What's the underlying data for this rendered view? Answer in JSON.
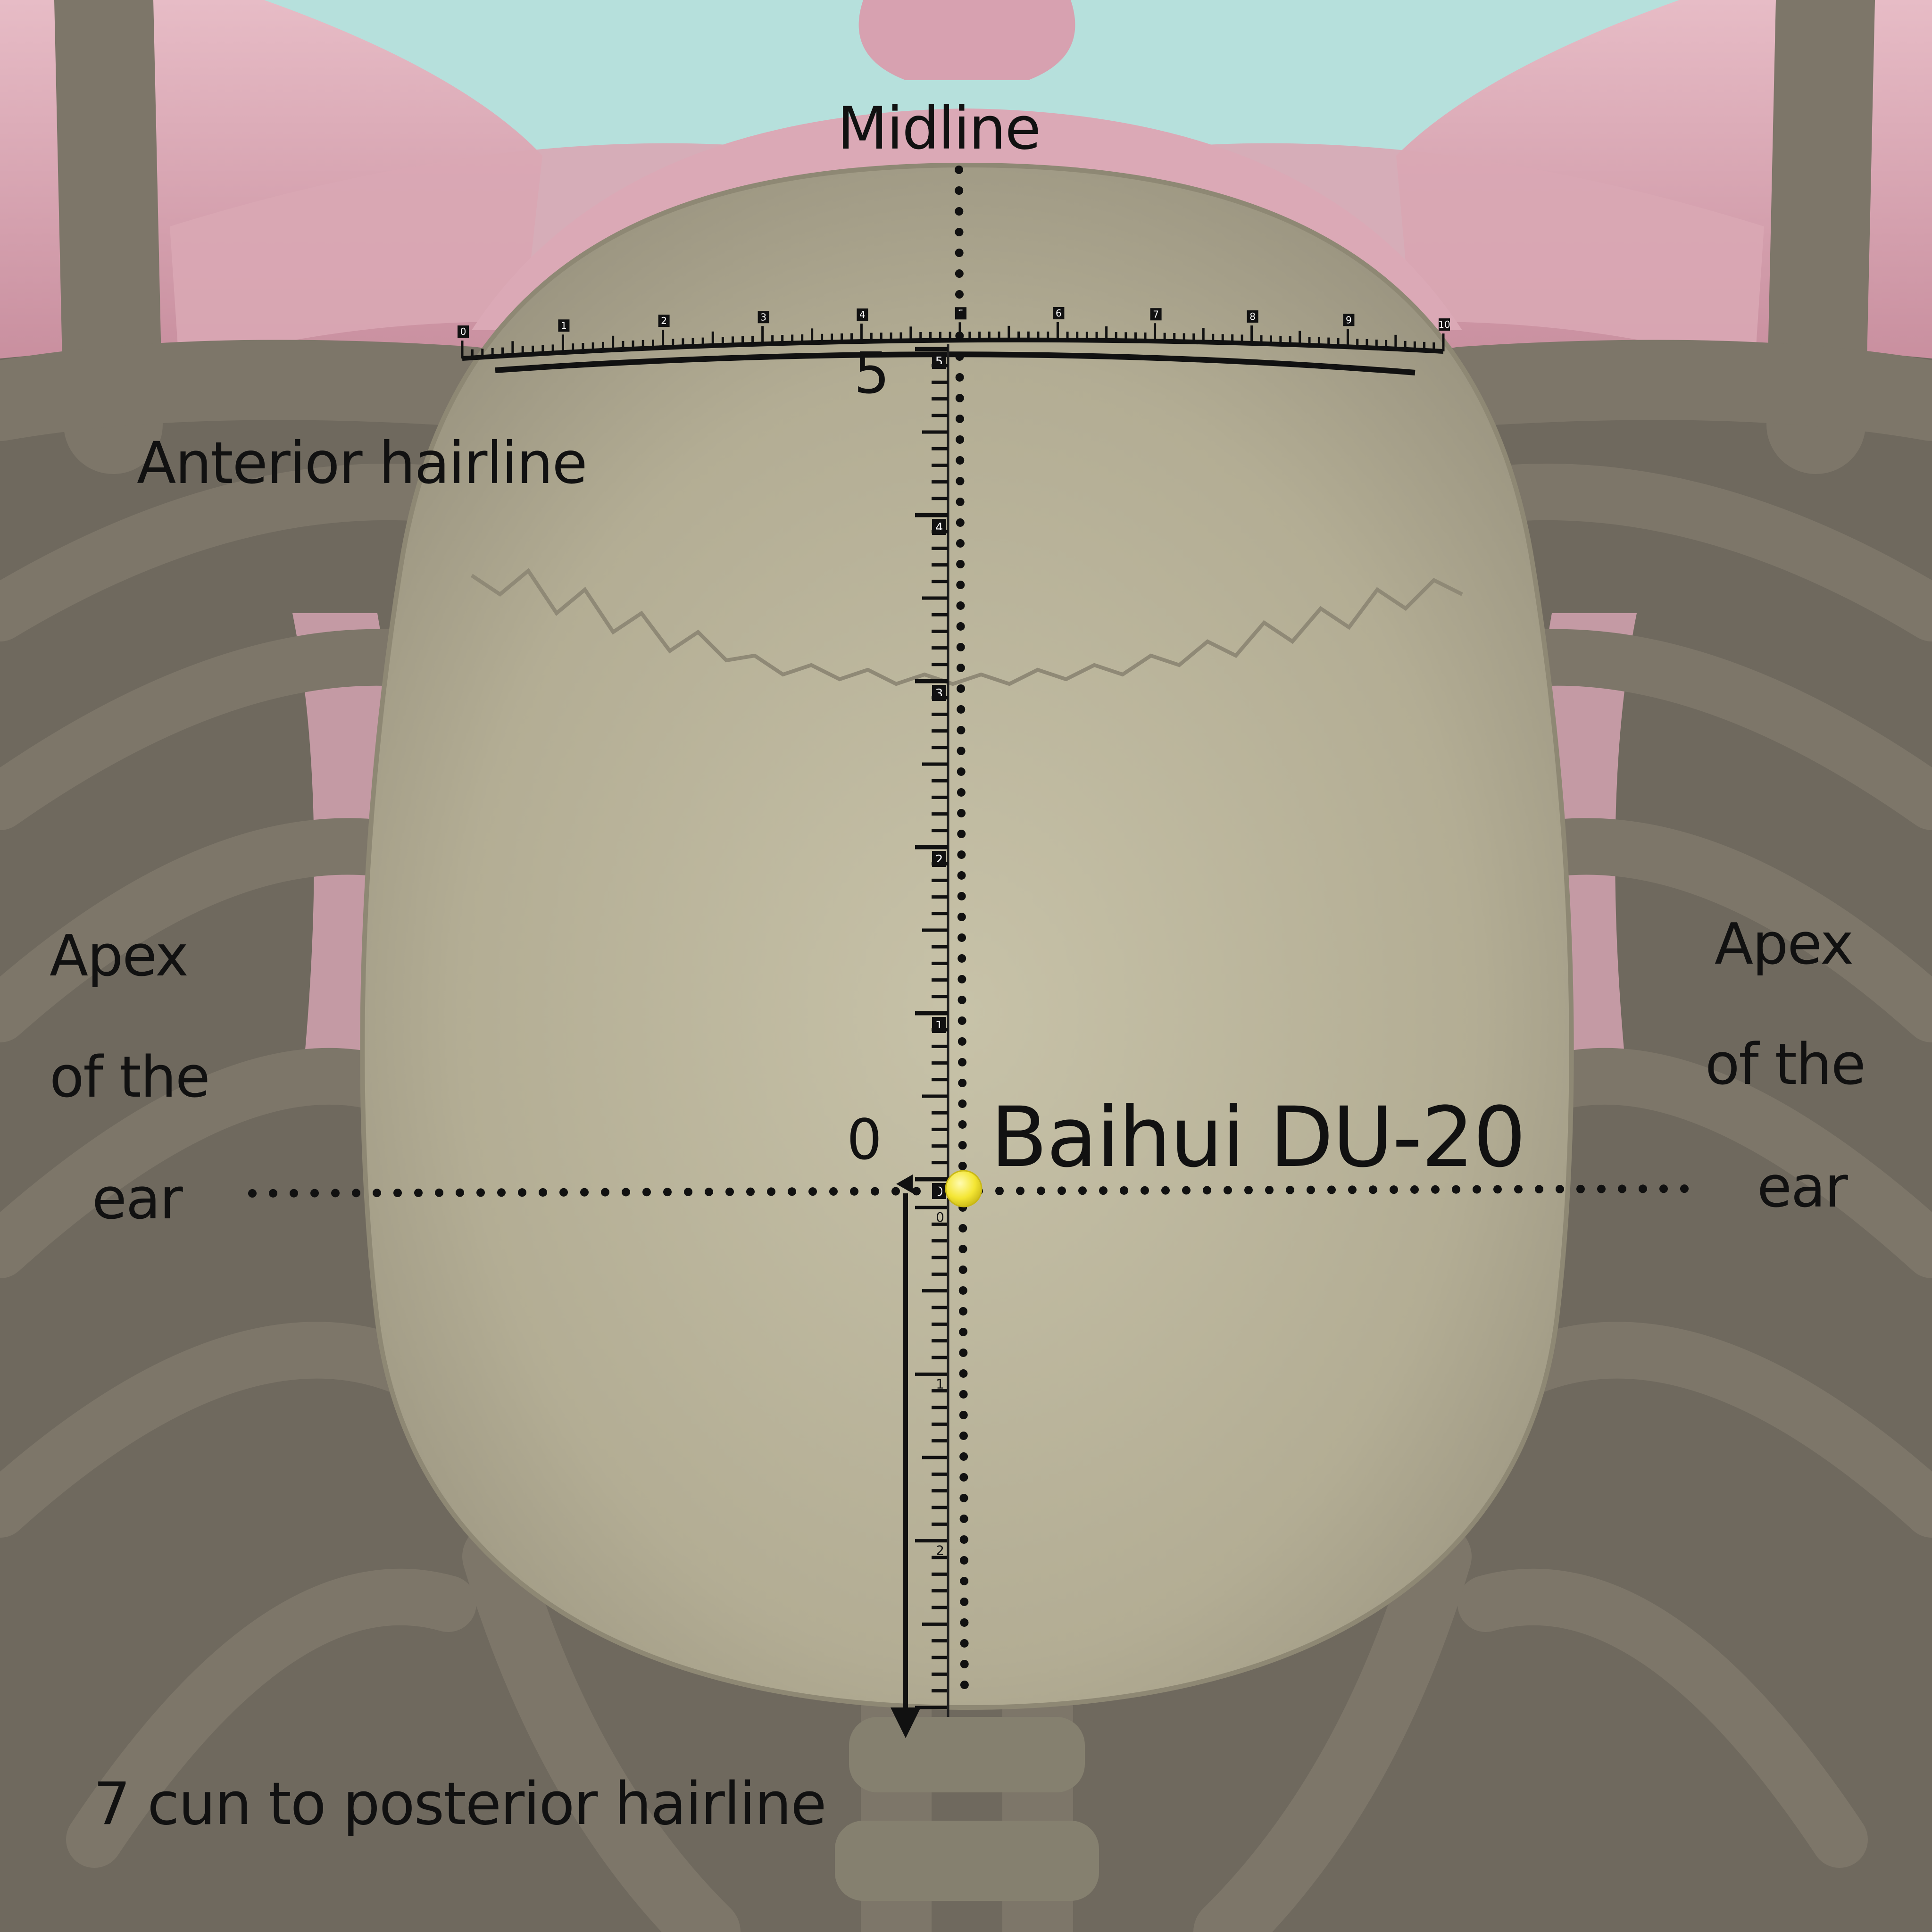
{
  "labels": {
    "midline": "Midline",
    "anterior_hairline": "Anterior hairline",
    "apex_left_1": "Apex",
    "apex_left_2": "of the",
    "apex_left_3": "ear",
    "apex_right_1": "Apex",
    "apex_right_2": "of the",
    "apex_right_3": "ear",
    "point": "Baihui DU-20",
    "posterior_note": "7 cun to posterior hairline",
    "scale_top_value": "5",
    "scale_zero_value": "0"
  },
  "colors": {
    "background": "#b6e0dc",
    "skull": "#b9b49c",
    "bone": "#7d7669",
    "pink_tissue": "#d9a7b4",
    "point_marker": "#f4e634",
    "lines": "#111111"
  },
  "vertical_scale": {
    "unit": "cun",
    "tick_labels": [
      "5",
      "4",
      "3",
      "2",
      "1",
      "0"
    ],
    "lower_tick_labels": [
      "0",
      "1",
      "2"
    ]
  },
  "horizontal_scale": {
    "unit": "cun",
    "tick_labels": [
      "0",
      "1",
      "2",
      "3",
      "4",
      "5",
      "6",
      "7",
      "8",
      "9",
      "10"
    ]
  }
}
